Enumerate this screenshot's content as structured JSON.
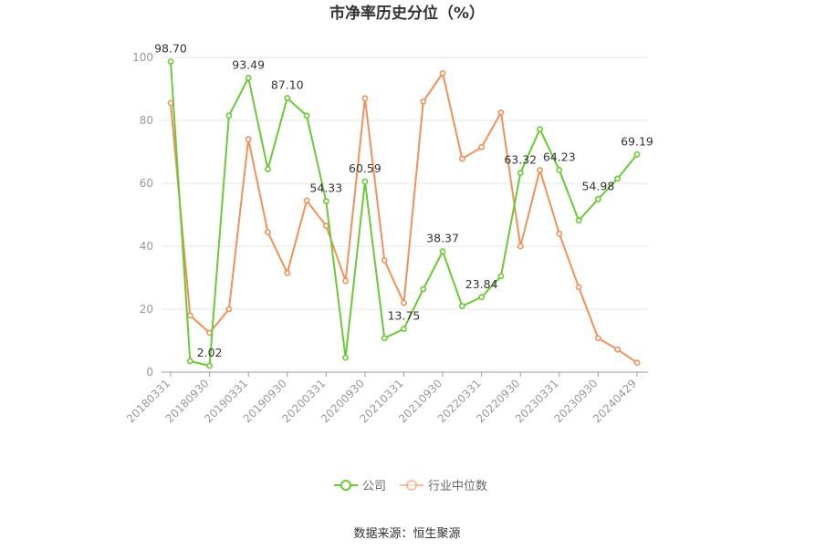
{
  "chart_data": {
    "type": "line",
    "title": "市净率历史分位（%）",
    "x": [
      "20180331",
      "20180630",
      "20180930",
      "20181231",
      "20190331",
      "20190630",
      "20190930",
      "20191231",
      "20200331",
      "20200630",
      "20200930",
      "20201231",
      "20210331",
      "20210630",
      "20210930",
      "20211231",
      "20220331",
      "20220630",
      "20220930",
      "20221231",
      "20230331",
      "20230630",
      "20230930",
      "20231231",
      "20240429"
    ],
    "x_tick_labels": [
      "20180331",
      "20180930",
      "20190331",
      "20190930",
      "20200331",
      "20200930",
      "20210331",
      "20210930",
      "20220331",
      "20220930",
      "20230331",
      "20230930",
      "20240429"
    ],
    "ylim": [
      0,
      100
    ],
    "y_ticks": [
      "0",
      "20",
      "40",
      "60",
      "80",
      "100"
    ],
    "series": [
      {
        "name": "公司",
        "color": "#6cc935",
        "values": [
          98.7,
          3.5,
          2.02,
          81.5,
          93.49,
          64.5,
          87.1,
          81.5,
          54.33,
          4.6,
          60.59,
          10.8,
          13.75,
          26.4,
          38.37,
          21.0,
          23.84,
          30.5,
          63.32,
          77.2,
          64.23,
          48.2,
          54.98,
          61.5,
          69.19
        ],
        "labels": [
          "98.70",
          "",
          "2.02",
          "",
          "93.49",
          "",
          "87.10",
          "",
          "54.33",
          "",
          "60.59",
          "",
          "13.75",
          "",
          "38.37",
          "",
          "23.84",
          "",
          "63.32",
          "",
          "64.23",
          "",
          "54.98",
          "",
          "69.19"
        ]
      },
      {
        "name": "行业中位数",
        "color": "#f0915c",
        "values": [
          85.5,
          18.0,
          12.5,
          20.0,
          74.0,
          44.5,
          31.5,
          54.5,
          46.5,
          29.0,
          87.0,
          35.5,
          22.0,
          86.0,
          95.0,
          67.8,
          71.5,
          82.5,
          40.0,
          64.2,
          44.0,
          27.0,
          10.8,
          7.2,
          3.0
        ]
      }
    ],
    "legend_position": "bottom-center",
    "grid": true,
    "source": "数据来源：恒生聚源"
  }
}
